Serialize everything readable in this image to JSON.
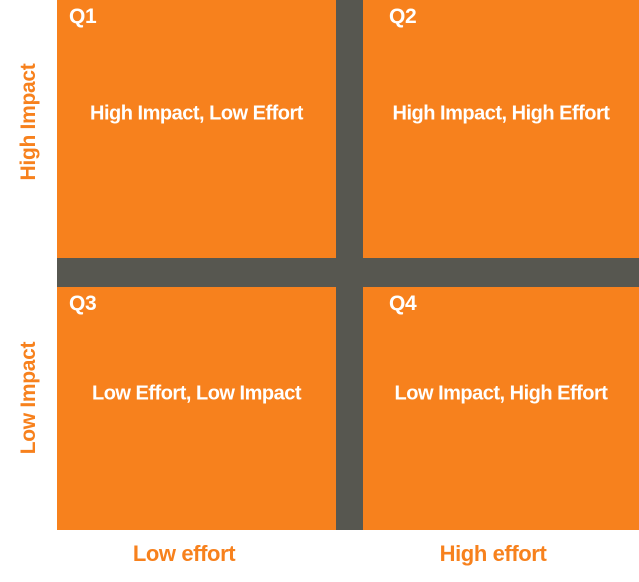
{
  "matrix": {
    "quadrants": [
      {
        "id": "Q1",
        "label": "High Impact, Low Effort"
      },
      {
        "id": "Q2",
        "label": "High Impact, High Effort"
      },
      {
        "id": "Q3",
        "label": "Low Effort, Low Impact"
      },
      {
        "id": "Q4",
        "label": "Low Impact, High Effort"
      }
    ],
    "y_axis": {
      "top_label": "High Impact",
      "bottom_label": "Low Impact"
    },
    "x_axis": {
      "left_label": "Low effort",
      "right_label": "High effort"
    },
    "colors": {
      "quadrant_fill": "#F7811D",
      "divider": "#575750",
      "quadrant_text": "#FFFFFF",
      "axis_text": "#F7811D",
      "background": "#FFFFFF"
    }
  }
}
